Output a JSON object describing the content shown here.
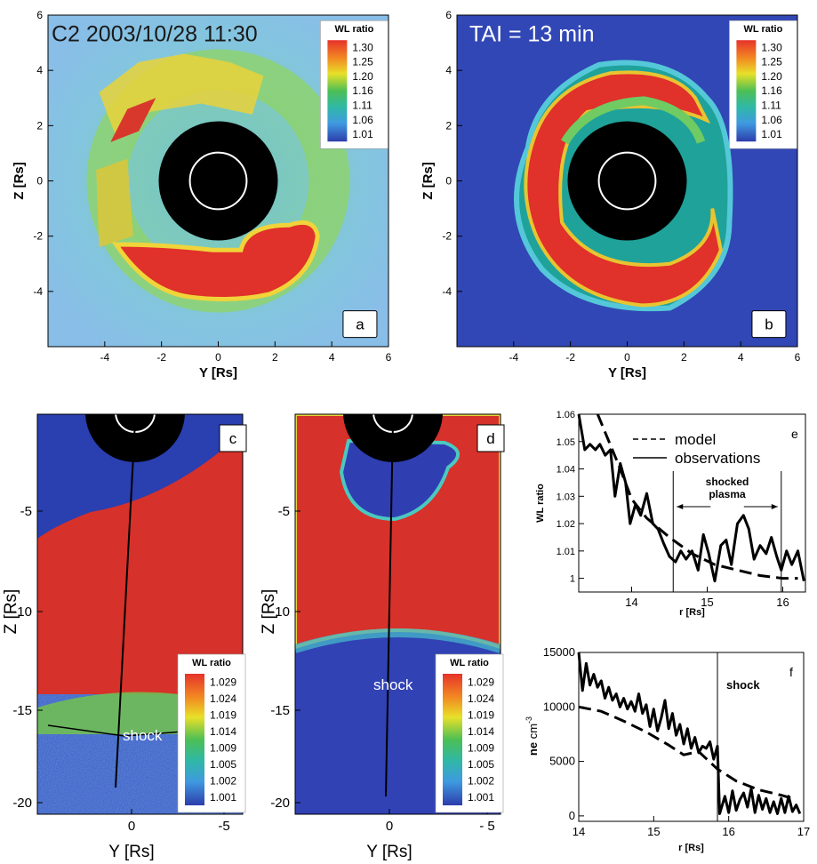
{
  "chart_data": [
    {
      "id": "a",
      "type": "heatmap",
      "panel_label": "a",
      "overlay_text": "C2 2003/10/28  11:30",
      "xlabel": "Y [Rs]",
      "ylabel": "Z [Rs]",
      "xlim": [
        -6,
        6
      ],
      "ylim": [
        -6,
        6
      ],
      "xticks": [
        -4,
        -2,
        0,
        2,
        4,
        6
      ],
      "xtick_labels": [
        "-4",
        "-2",
        "0",
        "2",
        "4",
        "6"
      ],
      "yticks": [
        -4,
        -2,
        0,
        2,
        4,
        6
      ],
      "ytick_labels": [
        "-4",
        "-2",
        "0",
        "2",
        "4",
        "6"
      ],
      "legend": {
        "title": "WL ratio",
        "labels": [
          "1.30",
          "1.25",
          "1.20",
          "1.16",
          "1.11",
          "1.06",
          "1.01"
        ],
        "position": "top-right"
      },
      "occulter_radius": 2.2,
      "sun_radius": 1.0
    },
    {
      "id": "b",
      "type": "heatmap",
      "panel_label": "b",
      "overlay_text": "TAI = 13 min",
      "xlabel": "Y [Rs]",
      "ylabel": "Z [Rs]",
      "xlim": [
        -6,
        6
      ],
      "ylim": [
        -6,
        6
      ],
      "xticks": [
        -4,
        -2,
        0,
        2,
        4,
        6
      ],
      "xtick_labels": [
        "-4",
        "-2",
        "0",
        "2",
        "4",
        "6"
      ],
      "yticks": [
        -4,
        -2,
        0,
        2,
        4,
        6
      ],
      "ytick_labels": [
        "-4",
        "-2",
        "0",
        "2",
        "4",
        "6"
      ],
      "legend": {
        "title": "WL ratio",
        "labels": [
          "1.30",
          "1.25",
          "1.20",
          "1.16",
          "1.11",
          "1.06",
          "1.01"
        ],
        "position": "top-right"
      },
      "occulter_radius": 2.2,
      "sun_radius": 1.0
    },
    {
      "id": "c",
      "type": "heatmap",
      "panel_label": "c",
      "annotation": "shock",
      "xlabel": "Y [Rs]",
      "ylabel": "Z [Rs]",
      "xtick_labels": [
        "0",
        "-5"
      ],
      "ytick_labels": [
        "-5",
        "-10",
        "-15",
        "-20"
      ],
      "legend": {
        "title": "WL ratio",
        "labels": [
          "1.029",
          "1.024",
          "1.019",
          "1.014",
          "1.009",
          "1.005",
          "1.002",
          "1.001"
        ],
        "position": "bottom-right"
      }
    },
    {
      "id": "d",
      "type": "heatmap",
      "panel_label": "d",
      "annotation": "shock",
      "xlabel": "Y [Rs]",
      "ylabel": "Z [Rs]",
      "xtick_labels": [
        "0",
        "- 5"
      ],
      "ytick_labels": [
        "-5",
        "-10",
        "-15",
        "-20"
      ],
      "legend": {
        "title": "WL ratio",
        "labels": [
          "1.029",
          "1.024",
          "1.019",
          "1.014",
          "1.009",
          "1.005",
          "1.002",
          "1.001"
        ],
        "position": "bottom-right"
      }
    },
    {
      "id": "e",
      "type": "line",
      "panel_label": "e",
      "xlabel": "r [Rs]",
      "ylabel": "WL ratio",
      "xlim": [
        13.3,
        16.3
      ],
      "ylim": [
        0.995,
        1.06
      ],
      "xticks": [
        14,
        15,
        16
      ],
      "xtick_labels": [
        "14",
        "15",
        "16"
      ],
      "yticks": [
        1,
        1.01,
        1.02,
        1.03,
        1.04,
        1.05,
        1.06
      ],
      "ytick_labels": [
        "1",
        "1.01",
        "1.02",
        "1.03",
        "1.04",
        "1.05",
        "1.06"
      ],
      "legend": {
        "position": "top-right",
        "entries": [
          "model",
          "observations"
        ]
      },
      "annotation": {
        "text": "shocked plasma",
        "lines": [
          "shocked",
          "plasma"
        ],
        "x_start": 14.55,
        "x_end": 15.98
      },
      "series": [
        {
          "name": "model",
          "style": "dashed",
          "x": [
            13.55,
            13.7,
            13.85,
            14.0,
            14.2,
            14.5,
            14.8,
            15.1,
            15.4,
            15.7,
            16.0,
            16.2
          ],
          "y": [
            1.06,
            1.05,
            1.04,
            1.029,
            1.022,
            1.015,
            1.009,
            1.005,
            1.003,
            1.001,
            1.0,
            1.0
          ]
        },
        {
          "name": "observations",
          "style": "solid",
          "x": [
            13.3,
            13.38,
            13.45,
            13.52,
            13.58,
            13.65,
            13.72,
            13.78,
            13.85,
            13.92,
            13.98,
            14.05,
            14.12,
            14.2,
            14.28,
            14.35,
            14.42,
            14.5,
            14.58,
            14.65,
            14.72,
            14.8,
            14.88,
            14.95,
            15.02,
            15.1,
            15.18,
            15.25,
            15.32,
            15.4,
            15.48,
            15.55,
            15.62,
            15.7,
            15.78,
            15.85,
            15.92,
            15.98,
            16.05,
            16.12,
            16.2,
            16.28
          ],
          "y": [
            1.06,
            1.047,
            1.049,
            1.047,
            1.049,
            1.045,
            1.047,
            1.03,
            1.042,
            1.035,
            1.02,
            1.027,
            1.023,
            1.031,
            1.02,
            1.018,
            1.013,
            1.008,
            1.006,
            1.01,
            1.007,
            1.01,
            1.003,
            1.016,
            1.009,
            0.999,
            1.012,
            1.014,
            1.005,
            1.02,
            1.023,
            1.018,
            1.007,
            1.012,
            1.009,
            1.015,
            1.008,
            1.003,
            1.01,
            1.005,
            1.01,
            0.999
          ]
        }
      ]
    },
    {
      "id": "f",
      "type": "line",
      "panel_label": "f",
      "xlabel": "r [Rs]",
      "ylabel": "ne",
      "ylabel_unit": "cm",
      "ylabel_exp": "-3",
      "xlim": [
        14,
        17
      ],
      "ylim": [
        -500,
        15000
      ],
      "xticks": [
        14,
        15,
        16,
        17
      ],
      "xtick_labels": [
        "14",
        "15",
        "16",
        "17"
      ],
      "yticks": [
        0,
        5000,
        10000,
        15000
      ],
      "ytick_labels": [
        "0",
        "5000",
        "10000",
        "15000"
      ],
      "annotation": {
        "text": "shock",
        "x": 15.85
      },
      "series": [
        {
          "name": "model",
          "style": "dashed",
          "x": [
            14.0,
            14.3,
            14.6,
            14.9,
            15.2,
            15.4,
            15.6,
            15.85,
            16.1,
            16.4,
            16.7,
            16.9
          ],
          "y": [
            10000,
            9600,
            8700,
            7700,
            6500,
            5600,
            5900,
            4300,
            3200,
            2400,
            1900,
            1500
          ]
        },
        {
          "name": "observations",
          "style": "solid",
          "x": [
            14.0,
            14.05,
            14.1,
            14.15,
            14.2,
            14.25,
            14.3,
            14.35,
            14.4,
            14.45,
            14.5,
            14.55,
            14.6,
            14.65,
            14.7,
            14.75,
            14.8,
            14.85,
            14.9,
            14.95,
            15.0,
            15.05,
            15.1,
            15.15,
            15.2,
            15.25,
            15.3,
            15.35,
            15.4,
            15.45,
            15.5,
            15.55,
            15.6,
            15.65,
            15.7,
            15.75,
            15.8,
            15.85,
            15.88,
            15.95,
            16.0,
            16.05,
            16.1,
            16.15,
            16.2,
            16.25,
            16.3,
            16.35,
            16.4,
            16.45,
            16.5,
            16.55,
            16.6,
            16.65,
            16.7,
            16.75,
            16.8,
            16.85,
            16.9,
            16.95
          ],
          "y": [
            15000,
            11500,
            14000,
            12000,
            13000,
            11800,
            12400,
            10800,
            11800,
            10600,
            11200,
            10000,
            10800,
            9800,
            10500,
            9600,
            11200,
            9400,
            10200,
            8200,
            9800,
            7800,
            9000,
            10600,
            8000,
            9400,
            7400,
            8400,
            6600,
            8000,
            6200,
            7200,
            5800,
            6400,
            6200,
            6800,
            5200,
            6400,
            200,
            1800,
            300,
            2300,
            500,
            1500,
            2100,
            800,
            2500,
            300,
            1900,
            600,
            1600,
            300,
            1300,
            200,
            1600,
            300,
            1800,
            400,
            1000,
            200
          ]
        }
      ]
    }
  ]
}
